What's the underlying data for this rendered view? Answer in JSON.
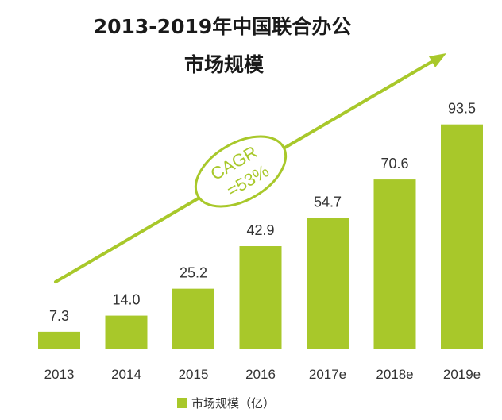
{
  "chart_data": {
    "type": "bar",
    "title_line1": "2013-2019年中国联合办公",
    "title_line2": "市场规模",
    "categories": [
      "2013",
      "2014",
      "2015",
      "2016",
      "2017e",
      "2018e",
      "2019e"
    ],
    "series": [
      {
        "name": "市场规模（亿）",
        "values": [
          7.3,
          14.0,
          25.2,
          42.9,
          54.7,
          70.6,
          93.5
        ]
      }
    ],
    "value_labels": [
      "7.3",
      "14.0",
      "25.2",
      "42.9",
      "54.7",
      "70.6",
      "93.5"
    ],
    "ylim": [
      0,
      100
    ],
    "grid": false,
    "legend_position": "bottom",
    "annotation": {
      "line1": "CAGR",
      "line2": "=53%"
    },
    "colors": {
      "bar": "#a8c82a",
      "arrow": "#a8c82a",
      "text": "#333333"
    }
  }
}
